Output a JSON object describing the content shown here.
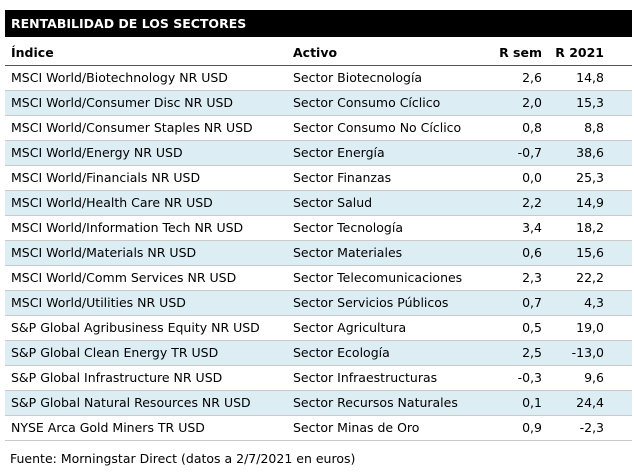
{
  "title": "RENTABILIDAD DE LOS SECTORES",
  "table": {
    "columns": [
      "Índice",
      "Activo",
      "R sem",
      "R 2021"
    ],
    "rows": [
      [
        "MSCI World/Biotechnology NR USD",
        "Sector Biotecnología",
        "2,6",
        "14,8"
      ],
      [
        "MSCI World/Consumer Disc NR USD",
        "Sector Consumo Cíclico",
        "2,0",
        "15,3"
      ],
      [
        "MSCI World/Consumer Staples NR USD",
        "Sector Consumo No Cíclico",
        "0,8",
        "8,8"
      ],
      [
        "MSCI World/Energy NR USD",
        "Sector Energía",
        "-0,7",
        "38,6"
      ],
      [
        "MSCI World/Financials NR USD",
        "Sector Finanzas",
        "0,0",
        "25,3"
      ],
      [
        "MSCI World/Health Care NR USD",
        "Sector Salud",
        "2,2",
        "14,9"
      ],
      [
        "MSCI World/Information Tech NR USD",
        "Sector Tecnología",
        "3,4",
        "18,2"
      ],
      [
        "MSCI World/Materials NR USD",
        "Sector Materiales",
        "0,6",
        "15,6"
      ],
      [
        "MSCI World/Comm Services NR USD",
        "Sector Telecomunicaciones",
        "2,3",
        "22,2"
      ],
      [
        "MSCI World/Utilities NR USD",
        "Sector Servicios Públicos",
        "0,7",
        "4,3"
      ],
      [
        "S&P Global Agribusiness Equity NR USD",
        "Sector Agricultura",
        "0,5",
        "19,0"
      ],
      [
        "S&P Global Clean Energy TR USD",
        "Sector Ecología",
        "2,5",
        "-13,0"
      ],
      [
        "S&P Global Infrastructure NR USD",
        "Sector Infraestructuras",
        "-0,3",
        "9,6"
      ],
      [
        "S&P Global Natural Resources NR USD",
        "Sector Recursos Naturales",
        "0,1",
        "24,4"
      ],
      [
        "NYSE Arca Gold Miners TR USD",
        "Sector Minas de Oro",
        "0,9",
        "-2,3"
      ]
    ]
  },
  "source": "Fuente: Morningstar Direct (datos a 2/7/2021 en euros)"
}
